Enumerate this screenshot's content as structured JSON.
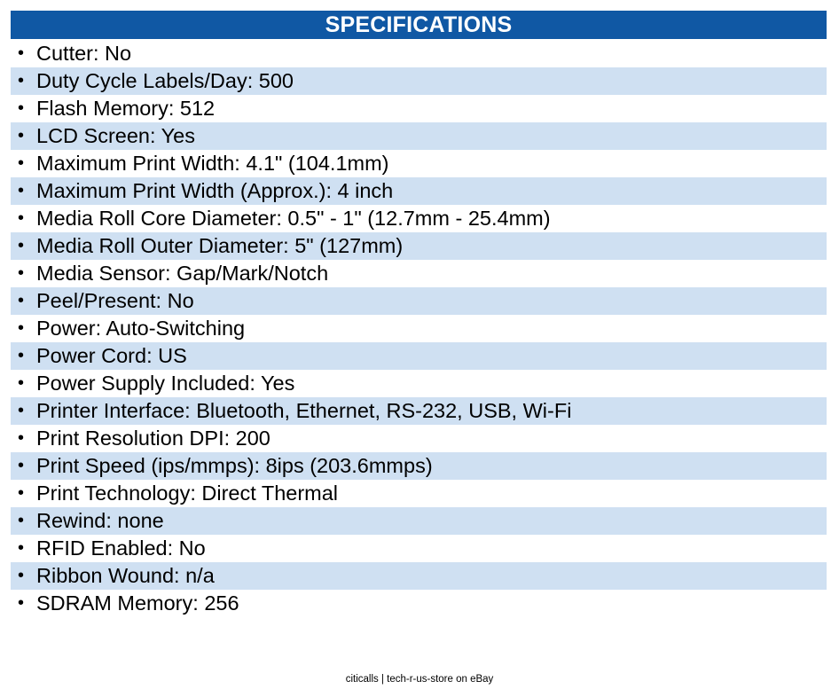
{
  "header": {
    "title": "SPECIFICATIONS"
  },
  "bullet": "•",
  "specs": [
    "Cutter: No",
    "Duty Cycle Labels/Day: 500",
    "Flash Memory: 512",
    "LCD Screen: Yes",
    "Maximum Print Width: 4.1\" (104.1mm)",
    "Maximum Print Width (Approx.): 4 inch",
    "Media Roll Core Diameter: 0.5\" - 1\" (12.7mm - 25.4mm)",
    "Media Roll Outer Diameter: 5\" (127mm)",
    "Media Sensor: Gap/Mark/Notch",
    "Peel/Present: No",
    "Power: Auto-Switching",
    "Power Cord: US",
    "Power Supply Included: Yes",
    "Printer Interface: Bluetooth, Ethernet, RS-232, USB, Wi-Fi",
    "Print Resolution DPI: 200",
    "Print Speed (ips/mmps): 8ips (203.6mmps)",
    "Print Technology: Direct Thermal",
    "Rewind: none",
    "RFID Enabled: No",
    "Ribbon Wound: n/a",
    "SDRAM Memory: 256"
  ],
  "footer": {
    "text": "citicalls | tech-r-us-store on eBay"
  },
  "colors": {
    "header_bg": "#1058a4",
    "stripe_bg": "#cfe0f2"
  }
}
